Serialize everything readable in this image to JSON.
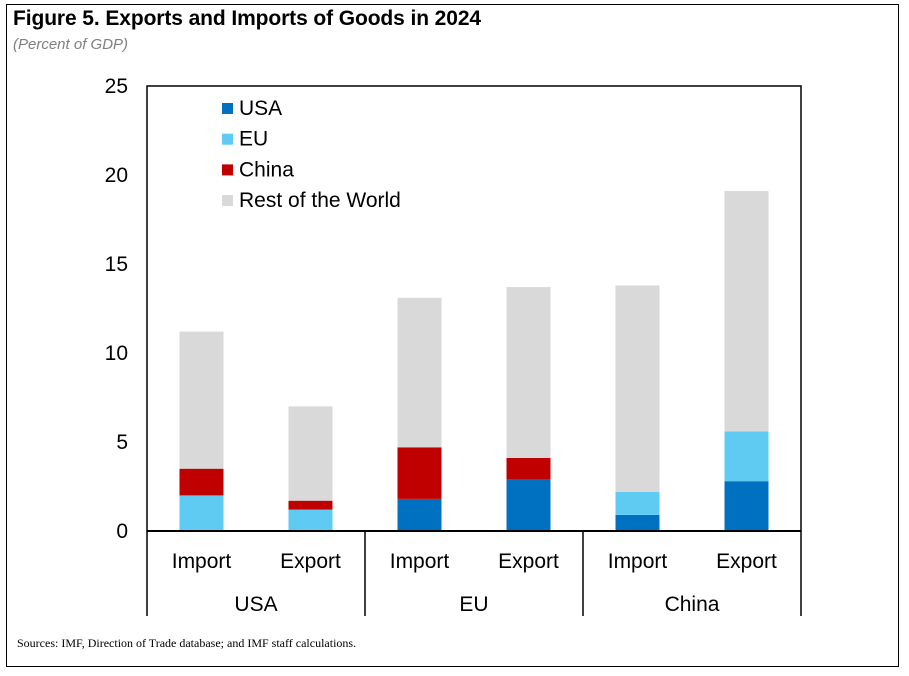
{
  "header": {
    "title": "Figure 5. Exports and Imports of Goods in 2024",
    "subtitle": "(Percent of GDP)"
  },
  "footer": {
    "source": "Sources: IMF, Direction of Trade database; and IMF staff calculations."
  },
  "chart_data": {
    "type": "bar",
    "stacked": true,
    "title": "Figure 5. Exports and Imports of Goods in 2024",
    "subtitle": "(Percent of GDP)",
    "xlabel": "",
    "ylabel": "",
    "ylim": [
      0,
      25
    ],
    "yticks": [
      0,
      5,
      10,
      15,
      20,
      25
    ],
    "grid": false,
    "legend_position": "top-left",
    "groups": [
      {
        "name": "USA",
        "categories": [
          "Import",
          "Export"
        ]
      },
      {
        "name": "EU",
        "categories": [
          "Import",
          "Export"
        ]
      },
      {
        "name": "China",
        "categories": [
          "Import",
          "Export"
        ]
      }
    ],
    "categories": [
      "USA Import",
      "USA Export",
      "EU Import",
      "EU Export",
      "China Import",
      "China Export"
    ],
    "category_labels": [
      "Import",
      "Export",
      "Import",
      "Export",
      "Import",
      "Export"
    ],
    "series": [
      {
        "name": "USA",
        "color": "#0070C0",
        "values": [
          0,
          0,
          1.8,
          2.9,
          0.9,
          2.8
        ]
      },
      {
        "name": "EU",
        "color": "#5FCBF3",
        "values": [
          2.0,
          1.2,
          0,
          0,
          1.3,
          2.8
        ]
      },
      {
        "name": "China",
        "color": "#C00000",
        "values": [
          1.5,
          0.5,
          2.9,
          1.2,
          0,
          0
        ]
      },
      {
        "name": "Rest of the World",
        "color": "#D9D9D9",
        "values": [
          7.7,
          5.3,
          8.4,
          9.6,
          11.6,
          13.5
        ]
      }
    ]
  }
}
